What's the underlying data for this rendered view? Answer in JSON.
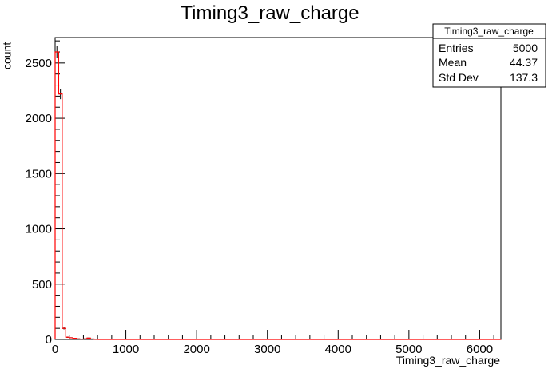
{
  "chart_data": {
    "type": "bar",
    "title": "Timing3_raw_charge",
    "xlabel": "Timing3_raw_charge",
    "ylabel": "count",
    "xlim": [
      0,
      6300
    ],
    "ylim": [
      0,
      2730
    ],
    "x_ticks": [
      0,
      1000,
      2000,
      3000,
      4000,
      5000,
      6000
    ],
    "y_ticks": [
      0,
      500,
      1000,
      1500,
      2000,
      2500
    ],
    "bin_width": 50,
    "bins": [
      {
        "x0": 0,
        "x1": 50,
        "count": 2600
      },
      {
        "x0": 50,
        "x1": 100,
        "count": 2220
      },
      {
        "x0": 100,
        "x1": 150,
        "count": 100
      },
      {
        "x0": 150,
        "x1": 200,
        "count": 20
      },
      {
        "x0": 200,
        "x1": 250,
        "count": 15
      },
      {
        "x0": 250,
        "x1": 300,
        "count": 10
      },
      {
        "x0": 300,
        "x1": 350,
        "count": 5
      },
      {
        "x0": 350,
        "x1": 400,
        "count": 3
      },
      {
        "x0": 400,
        "x1": 450,
        "count": 5
      },
      {
        "x0": 450,
        "x1": 500,
        "count": 12
      },
      {
        "x0": 500,
        "x1": 550,
        "count": 4
      },
      {
        "x0": 550,
        "x1": 600,
        "count": 2
      }
    ],
    "grid": false,
    "legend": "none",
    "line_color": "#ff0000",
    "error_color": "#000000",
    "stats_box": {
      "title": "Timing3_raw_charge",
      "placement": "top-right",
      "rows": [
        {
          "label": "Entries",
          "value": "5000"
        },
        {
          "label": "Mean",
          "value": "44.37"
        },
        {
          "label": "Std Dev",
          "value": "137.3"
        }
      ]
    }
  }
}
